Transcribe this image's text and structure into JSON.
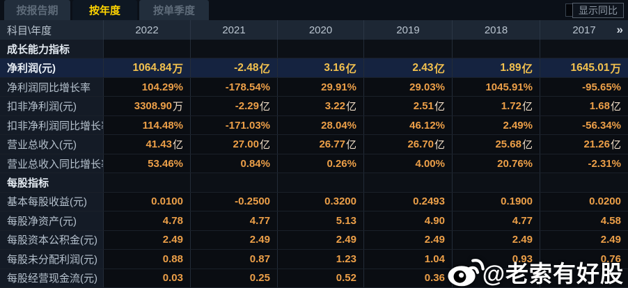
{
  "tabs": [
    {
      "label": "按报告期",
      "active": false
    },
    {
      "label": "按年度",
      "active": true
    },
    {
      "label": "按单季度",
      "active": false
    }
  ],
  "controls": {
    "show_yoy_label": "显示同比",
    "checkbox_checked": false
  },
  "table": {
    "corner_label": "科目\\年度",
    "years": [
      "2022",
      "2021",
      "2020",
      "2019",
      "2018",
      "2017"
    ],
    "more_years_icon": "»",
    "rows": [
      {
        "type": "section",
        "highlight": false,
        "label": "成长能力指标",
        "values": [
          "",
          "",
          "",
          "",
          "",
          ""
        ]
      },
      {
        "type": "data",
        "highlight": true,
        "label": "净利润(元)",
        "values": [
          "1064.84万",
          "-2.48亿",
          "3.16亿",
          "2.43亿",
          "1.89亿",
          "1645.01万"
        ]
      },
      {
        "type": "data",
        "highlight": false,
        "label": "净利润同比增长率",
        "values": [
          "104.29%",
          "-178.54%",
          "29.91%",
          "29.03%",
          "1045.91%",
          "-95.65%"
        ]
      },
      {
        "type": "data",
        "highlight": false,
        "label": "扣非净利润(元)",
        "values": [
          "3308.90万",
          "-2.29亿",
          "3.22亿",
          "2.51亿",
          "1.72亿",
          "1.68亿"
        ]
      },
      {
        "type": "data",
        "highlight": false,
        "label": "扣非净利润同比增长率",
        "values": [
          "114.48%",
          "-171.03%",
          "28.04%",
          "46.12%",
          "2.49%",
          "-56.34%"
        ]
      },
      {
        "type": "data",
        "highlight": false,
        "label": "营业总收入(元)",
        "values": [
          "41.43亿",
          "27.00亿",
          "26.77亿",
          "26.70亿",
          "25.68亿",
          "21.26亿"
        ]
      },
      {
        "type": "data",
        "highlight": false,
        "label": "营业总收入同比增长率",
        "values": [
          "53.46%",
          "0.84%",
          "0.26%",
          "4.00%",
          "20.76%",
          "-2.31%"
        ]
      },
      {
        "type": "section",
        "highlight": false,
        "label": "每股指标",
        "values": [
          "",
          "",
          "",
          "",
          "",
          ""
        ]
      },
      {
        "type": "data",
        "highlight": false,
        "label": "基本每股收益(元)",
        "values": [
          "0.0100",
          "-0.2500",
          "0.3200",
          "0.2493",
          "0.1900",
          "0.0200"
        ]
      },
      {
        "type": "data",
        "highlight": false,
        "label": "每股净资产(元)",
        "values": [
          "4.78",
          "4.77",
          "5.13",
          "4.90",
          "4.77",
          "4.58"
        ]
      },
      {
        "type": "data",
        "highlight": false,
        "label": "每股资本公积金(元)",
        "values": [
          "2.49",
          "2.49",
          "2.49",
          "2.49",
          "2.49",
          "2.49"
        ]
      },
      {
        "type": "data",
        "highlight": false,
        "label": "每股未分配利润(元)",
        "values": [
          "0.88",
          "0.87",
          "1.23",
          "1.04",
          "0.93",
          "0.76"
        ]
      },
      {
        "type": "data",
        "highlight": false,
        "label": "每股经营现金流(元)",
        "values": [
          "0.03",
          "0.25",
          "0.52",
          "0.36",
          "",
          ""
        ]
      }
    ]
  },
  "watermark": {
    "icon": "weibo-logo",
    "text": "@老索有好股"
  },
  "colors": {
    "page_bg": "#0a0e14",
    "header_bg": "#1d2734",
    "label_col_bg": "#141b26",
    "value_cell_bg": "#0a0d12",
    "highlight_row_bg": "#152340",
    "value_orange": "#ec9f48",
    "highlight_yellow": "#f2c14e",
    "active_tab_yellow": "#ffd400"
  }
}
